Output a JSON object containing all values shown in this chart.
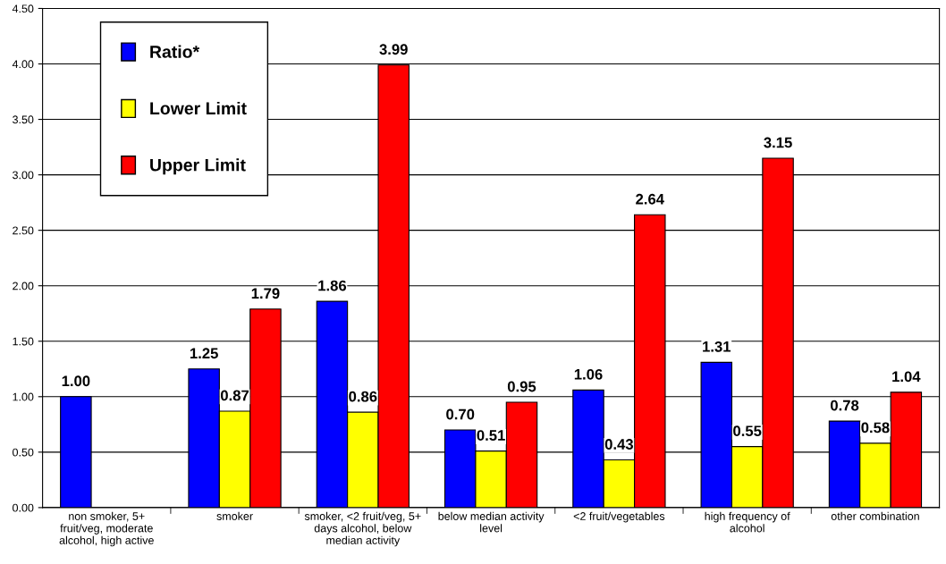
{
  "chart_data": {
    "type": "bar",
    "categories": [
      "non smoker, 5+ fruit/veg, moderate alcohol, high active",
      "smoker",
      "smoker, <2 fruit/veg, 5+ days alcohol, below median activity",
      "below median activity level",
      "<2 fruit/vegetables",
      "high frequency of alcohol",
      "other combination"
    ],
    "series": [
      {
        "name": "Ratio*",
        "color": "#0000ff",
        "values": [
          1.0,
          1.25,
          1.86,
          0.7,
          1.06,
          1.31,
          0.78
        ],
        "value_labels": [
          "1.00",
          "1.25",
          "1.86",
          "0.70",
          "1.06",
          "1.31",
          "0.78"
        ]
      },
      {
        "name": "Lower Limit",
        "color": "#ffff00",
        "values": [
          null,
          0.87,
          0.86,
          0.51,
          0.43,
          0.55,
          0.58
        ],
        "value_labels": [
          null,
          "0.87",
          "0.86",
          "0.51",
          "0.43",
          "0.55",
          "0.58"
        ]
      },
      {
        "name": "Upper Limit",
        "color": "#ff0000",
        "values": [
          null,
          1.79,
          3.99,
          0.95,
          2.64,
          3.15,
          1.04
        ],
        "value_labels": [
          null,
          "1.79",
          "3.99",
          "0.95",
          "2.64",
          "3.15",
          "1.04"
        ]
      }
    ],
    "ylim": [
      0,
      4.5
    ],
    "yticks": [
      {
        "value": 0,
        "label": "0.00"
      },
      {
        "value": 0.5,
        "label": "0.50"
      },
      {
        "value": 1,
        "label": "1.00"
      },
      {
        "value": 1.5,
        "label": "1.50"
      },
      {
        "value": 2,
        "label": "2.00"
      },
      {
        "value": 2.5,
        "label": "2.50"
      },
      {
        "value": 3,
        "label": "3.00"
      },
      {
        "value": 3.5,
        "label": "3.50"
      },
      {
        "value": 4,
        "label": "4.00"
      },
      {
        "value": 4.5,
        "label": "4.50"
      }
    ],
    "grid": "y",
    "legend": "top left"
  }
}
